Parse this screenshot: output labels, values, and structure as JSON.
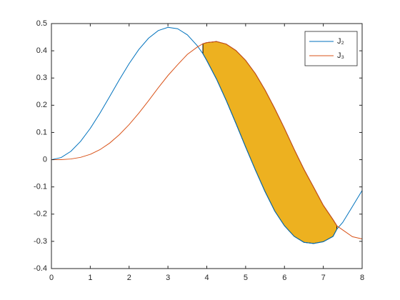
{
  "chart_data": {
    "type": "line",
    "x": [
      0,
      0.25,
      0.5,
      0.75,
      1,
      1.25,
      1.5,
      1.75,
      2,
      2.25,
      2.5,
      2.75,
      3,
      3.25,
      3.5,
      3.75,
      3.9,
      4,
      4.25,
      4.5,
      4.75,
      5,
      5.25,
      5.5,
      5.75,
      6,
      6.25,
      6.5,
      6.75,
      7,
      7.25,
      7.35,
      7.5,
      7.75,
      8
    ],
    "series": [
      {
        "name": "J₂",
        "color": "#0072BD",
        "values": [
          0,
          0.0078,
          0.0306,
          0.0671,
          0.1149,
          0.1711,
          0.2321,
          0.294,
          0.3528,
          0.4047,
          0.4461,
          0.4742,
          0.4861,
          0.4811,
          0.4586,
          0.4194,
          0.3894,
          0.3641,
          0.2961,
          0.2178,
          0.1333,
          0.0466,
          -0.0375,
          -0.1173,
          -0.1887,
          -0.2429,
          -0.2817,
          -0.3035,
          -0.3079,
          -0.3014,
          -0.2818,
          -0.255,
          -0.2303,
          -0.172,
          -0.113
        ]
      },
      {
        "name": "J₃",
        "color": "#D95319",
        "values": [
          0,
          0.0003,
          0.0026,
          0.0085,
          0.0196,
          0.0369,
          0.061,
          0.0919,
          0.1289,
          0.1709,
          0.2166,
          0.264,
          0.3091,
          0.349,
          0.3868,
          0.4133,
          0.426,
          0.4302,
          0.434,
          0.4247,
          0.4011,
          0.3648,
          0.3164,
          0.2561,
          0.1877,
          0.1148,
          0.038,
          -0.035,
          -0.101,
          -0.1676,
          -0.2201,
          -0.243,
          -0.2582,
          -0.283,
          -0.291
        ]
      }
    ],
    "fill": {
      "color": "#EDB120",
      "edge": "#000000",
      "xrange": [
        3.9,
        7.35
      ]
    },
    "xlim": [
      0,
      8
    ],
    "xticks": [
      0,
      1,
      2,
      3,
      4,
      5,
      6,
      7,
      8
    ],
    "ylim": [
      -0.4,
      0.5
    ],
    "yticks": [
      -0.4,
      -0.3,
      -0.2,
      -0.1,
      0,
      0.1,
      0.2,
      0.3,
      0.4,
      0.5
    ],
    "legend": "top-right"
  }
}
